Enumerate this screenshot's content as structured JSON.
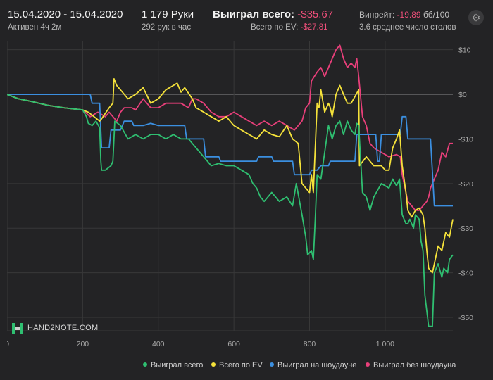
{
  "header": {
    "date_range": "15.04.2020 - 15.04.2020",
    "active_time": "Активен 4ч 2м",
    "hands": "1 179 Руки",
    "hands_rate": "292 рук в час",
    "won_total_label": "Выиграл всего:",
    "won_total_value": "-$35.67",
    "ev_total_label": "Всего по EV:",
    "ev_total_value": "-$27.81",
    "winrate_label": "Винрейт:",
    "winrate_value": "-19.89",
    "winrate_unit": "бб/100",
    "tables": "3.6 среднее число столов"
  },
  "logo": {
    "text": "HAND2NOTE.COM"
  },
  "icons": {
    "settings": "gear-icon"
  },
  "colors": {
    "background": "#232325",
    "grid": "#383839",
    "zero_line": "#8a8a8a",
    "negative_value": "#ef4f7a"
  },
  "chart_data": {
    "type": "line",
    "xlim": [
      0,
      1179
    ],
    "ylim": [
      -53,
      12
    ],
    "x_ticks": [
      0,
      200,
      400,
      600,
      800,
      1000
    ],
    "x_tick_labels": [
      "0",
      "200",
      "400",
      "600",
      "800",
      "1 000"
    ],
    "y_ticks": [
      10,
      0,
      -10,
      -20,
      -30,
      -40,
      -50
    ],
    "y_tick_labels": [
      "$10",
      "$0",
      "-$10",
      "-$20",
      "-$30",
      "-$40",
      "-$50"
    ],
    "grid": true,
    "legend_position": "bottom-right",
    "series": [
      {
        "name": "Выиграл всего",
        "color": "#2fbf71",
        "points": [
          [
            0,
            0
          ],
          [
            30,
            -1
          ],
          [
            60,
            -1.5
          ],
          [
            110,
            -2.5
          ],
          [
            150,
            -3
          ],
          [
            200,
            -3.5
          ],
          [
            210,
            -5
          ],
          [
            215,
            -6.5
          ],
          [
            225,
            -7
          ],
          [
            235,
            -6
          ],
          [
            245,
            -7.5
          ],
          [
            248,
            -15
          ],
          [
            250,
            -17
          ],
          [
            260,
            -17
          ],
          [
            275,
            -16
          ],
          [
            280,
            -15
          ],
          [
            285,
            -6
          ],
          [
            300,
            -7
          ],
          [
            320,
            -10
          ],
          [
            340,
            -9
          ],
          [
            360,
            -10
          ],
          [
            380,
            -9
          ],
          [
            400,
            -9
          ],
          [
            420,
            -10
          ],
          [
            440,
            -9
          ],
          [
            460,
            -10
          ],
          [
            480,
            -10
          ],
          [
            500,
            -12
          ],
          [
            520,
            -14
          ],
          [
            540,
            -16
          ],
          [
            560,
            -15.5
          ],
          [
            580,
            -16
          ],
          [
            600,
            -16
          ],
          [
            620,
            -17
          ],
          [
            640,
            -18
          ],
          [
            650,
            -20
          ],
          [
            660,
            -21
          ],
          [
            670,
            -23
          ],
          [
            680,
            -24
          ],
          [
            700,
            -22
          ],
          [
            720,
            -24
          ],
          [
            740,
            -23
          ],
          [
            755,
            -25
          ],
          [
            765,
            -20
          ],
          [
            780,
            -27
          ],
          [
            790,
            -32
          ],
          [
            795,
            -36
          ],
          [
            805,
            -35
          ],
          [
            810,
            -37
          ],
          [
            815,
            -28
          ],
          [
            820,
            -18
          ],
          [
            830,
            -19
          ],
          [
            840,
            -13
          ],
          [
            850,
            -7
          ],
          [
            860,
            -10
          ],
          [
            870,
            -7
          ],
          [
            880,
            -6
          ],
          [
            890,
            -9
          ],
          [
            900,
            -6
          ],
          [
            910,
            -8
          ],
          [
            920,
            -9
          ],
          [
            925,
            -6.5
          ],
          [
            930,
            -7
          ],
          [
            940,
            -22
          ],
          [
            950,
            -23
          ],
          [
            960,
            -26
          ],
          [
            970,
            -23
          ],
          [
            990,
            -20
          ],
          [
            1010,
            -21
          ],
          [
            1020,
            -19
          ],
          [
            1030,
            -20.5
          ],
          [
            1038,
            -19
          ],
          [
            1045,
            -27
          ],
          [
            1055,
            -29
          ],
          [
            1060,
            -29
          ],
          [
            1065,
            -28
          ],
          [
            1070,
            -29
          ],
          [
            1075,
            -30
          ],
          [
            1080,
            -27
          ],
          [
            1090,
            -28
          ],
          [
            1095,
            -33
          ],
          [
            1100,
            -35
          ],
          [
            1105,
            -45
          ],
          [
            1115,
            -52
          ],
          [
            1125,
            -52
          ],
          [
            1130,
            -40
          ],
          [
            1140,
            -38
          ],
          [
            1150,
            -41
          ],
          [
            1155,
            -39
          ],
          [
            1165,
            -40
          ],
          [
            1170,
            -37
          ],
          [
            1179,
            -36
          ]
        ]
      },
      {
        "name": "Всего по EV",
        "color": "#f5e23a",
        "points": [
          [
            0,
            0
          ],
          [
            30,
            -1
          ],
          [
            60,
            -1.5
          ],
          [
            110,
            -2.5
          ],
          [
            150,
            -3
          ],
          [
            200,
            -3.5
          ],
          [
            215,
            -4
          ],
          [
            230,
            -5
          ],
          [
            245,
            -6
          ],
          [
            250,
            -5.5
          ],
          [
            270,
            -3
          ],
          [
            280,
            -2
          ],
          [
            283,
            3.5
          ],
          [
            290,
            2
          ],
          [
            300,
            1
          ],
          [
            320,
            -1
          ],
          [
            340,
            0
          ],
          [
            360,
            1.5
          ],
          [
            380,
            -2
          ],
          [
            400,
            -1
          ],
          [
            420,
            1
          ],
          [
            440,
            2
          ],
          [
            450,
            2.5
          ],
          [
            460,
            0.5
          ],
          [
            470,
            1.5
          ],
          [
            490,
            -1
          ],
          [
            500,
            -3
          ],
          [
            520,
            -4
          ],
          [
            540,
            -5
          ],
          [
            560,
            -6
          ],
          [
            580,
            -5
          ],
          [
            600,
            -7
          ],
          [
            620,
            -8
          ],
          [
            640,
            -9
          ],
          [
            660,
            -10
          ],
          [
            680,
            -8
          ],
          [
            700,
            -9
          ],
          [
            720,
            -9.5
          ],
          [
            740,
            -7
          ],
          [
            755,
            -10
          ],
          [
            770,
            -11
          ],
          [
            780,
            -20
          ],
          [
            790,
            -21
          ],
          [
            800,
            -22
          ],
          [
            805,
            -18
          ],
          [
            810,
            -22
          ],
          [
            820,
            -2
          ],
          [
            825,
            -3
          ],
          [
            830,
            1
          ],
          [
            840,
            -4
          ],
          [
            850,
            -2
          ],
          [
            855,
            -3
          ],
          [
            860,
            -5
          ],
          [
            870,
            0
          ],
          [
            880,
            2
          ],
          [
            890,
            0
          ],
          [
            900,
            -2
          ],
          [
            910,
            -2
          ],
          [
            930,
            1
          ],
          [
            932,
            -16
          ],
          [
            950,
            -14
          ],
          [
            970,
            -16
          ],
          [
            990,
            -16
          ],
          [
            1000,
            -17
          ],
          [
            1010,
            -17
          ],
          [
            1020,
            -12
          ],
          [
            1030,
            -10
          ],
          [
            1038,
            -8
          ],
          [
            1045,
            -16
          ],
          [
            1055,
            -22
          ],
          [
            1060,
            -26
          ],
          [
            1070,
            -27.5
          ],
          [
            1080,
            -26
          ],
          [
            1090,
            -25.5
          ],
          [
            1100,
            -27
          ],
          [
            1105,
            -30
          ],
          [
            1110,
            -35
          ],
          [
            1115,
            -39
          ],
          [
            1125,
            -40
          ],
          [
            1130,
            -38
          ],
          [
            1140,
            -34
          ],
          [
            1150,
            -35
          ],
          [
            1160,
            -31
          ],
          [
            1170,
            -32
          ],
          [
            1179,
            -28
          ]
        ]
      },
      {
        "name": "Выиграл на шоудауне",
        "color": "#3b8fe0",
        "points": [
          [
            0,
            0
          ],
          [
            60,
            0
          ],
          [
            120,
            0
          ],
          [
            180,
            0
          ],
          [
            220,
            0
          ],
          [
            225,
            -2
          ],
          [
            245,
            -2
          ],
          [
            250,
            -12
          ],
          [
            270,
            -12
          ],
          [
            275,
            -8
          ],
          [
            300,
            -8
          ],
          [
            310,
            -6
          ],
          [
            330,
            -6
          ],
          [
            335,
            -7
          ],
          [
            360,
            -7
          ],
          [
            380,
            -6.5
          ],
          [
            400,
            -7
          ],
          [
            420,
            -7
          ],
          [
            470,
            -7
          ],
          [
            475,
            -10
          ],
          [
            520,
            -10
          ],
          [
            525,
            -14
          ],
          [
            560,
            -14
          ],
          [
            565,
            -15
          ],
          [
            620,
            -15
          ],
          [
            660,
            -15
          ],
          [
            665,
            -14
          ],
          [
            700,
            -14
          ],
          [
            705,
            -15
          ],
          [
            755,
            -15
          ],
          [
            760,
            -18
          ],
          [
            790,
            -18
          ],
          [
            800,
            -18
          ],
          [
            805,
            -17
          ],
          [
            820,
            -17
          ],
          [
            830,
            -16
          ],
          [
            850,
            -16
          ],
          [
            855,
            -15
          ],
          [
            880,
            -15
          ],
          [
            900,
            -15
          ],
          [
            920,
            -15
          ],
          [
            925,
            -9
          ],
          [
            975,
            -9
          ],
          [
            980,
            -15
          ],
          [
            985,
            -15
          ],
          [
            990,
            -9
          ],
          [
            1040,
            -9
          ],
          [
            1045,
            -5
          ],
          [
            1055,
            -5
          ],
          [
            1060,
            -10
          ],
          [
            1080,
            -10
          ],
          [
            1120,
            -10
          ],
          [
            1130,
            -25
          ],
          [
            1140,
            -25
          ],
          [
            1150,
            -25
          ],
          [
            1179,
            -25
          ]
        ]
      },
      {
        "name": "Выиграл без шоудауна",
        "color": "#e83f7a",
        "points": [
          [
            0,
            0
          ],
          [
            30,
            -1
          ],
          [
            60,
            -1.5
          ],
          [
            110,
            -2.5
          ],
          [
            150,
            -3
          ],
          [
            200,
            -3.5
          ],
          [
            220,
            -5
          ],
          [
            240,
            -4
          ],
          [
            260,
            -5
          ],
          [
            270,
            -4
          ],
          [
            290,
            -6
          ],
          [
            300,
            -4
          ],
          [
            310,
            -3
          ],
          [
            330,
            -3
          ],
          [
            340,
            -3.5
          ],
          [
            360,
            -1
          ],
          [
            380,
            -3
          ],
          [
            400,
            -3
          ],
          [
            420,
            -2
          ],
          [
            440,
            -2
          ],
          [
            460,
            -2
          ],
          [
            480,
            -3
          ],
          [
            490,
            -1
          ],
          [
            500,
            -1
          ],
          [
            520,
            -2
          ],
          [
            540,
            -4
          ],
          [
            560,
            -5
          ],
          [
            580,
            -5
          ],
          [
            600,
            -4
          ],
          [
            620,
            -5
          ],
          [
            640,
            -6
          ],
          [
            660,
            -7
          ],
          [
            680,
            -6
          ],
          [
            700,
            -7
          ],
          [
            720,
            -6
          ],
          [
            740,
            -7
          ],
          [
            760,
            -8
          ],
          [
            780,
            -6
          ],
          [
            790,
            -3
          ],
          [
            800,
            -2
          ],
          [
            805,
            3
          ],
          [
            820,
            5
          ],
          [
            830,
            6
          ],
          [
            840,
            4
          ],
          [
            850,
            6
          ],
          [
            860,
            8
          ],
          [
            870,
            10
          ],
          [
            880,
            11
          ],
          [
            890,
            8
          ],
          [
            900,
            6
          ],
          [
            910,
            7
          ],
          [
            920,
            6
          ],
          [
            925,
            8
          ],
          [
            930,
            4
          ],
          [
            940,
            -5
          ],
          [
            950,
            -7
          ],
          [
            960,
            -11
          ],
          [
            970,
            -12
          ],
          [
            990,
            -13
          ],
          [
            1010,
            -14
          ],
          [
            1030,
            -13.5
          ],
          [
            1040,
            -14
          ],
          [
            1045,
            -18
          ],
          [
            1060,
            -24
          ],
          [
            1070,
            -25
          ],
          [
            1080,
            -26
          ],
          [
            1090,
            -26
          ],
          [
            1100,
            -25
          ],
          [
            1110,
            -24
          ],
          [
            1115,
            -23
          ],
          [
            1120,
            -21
          ],
          [
            1130,
            -19
          ],
          [
            1140,
            -17
          ],
          [
            1150,
            -13
          ],
          [
            1160,
            -14
          ],
          [
            1170,
            -11
          ],
          [
            1179,
            -11
          ]
        ]
      }
    ]
  }
}
